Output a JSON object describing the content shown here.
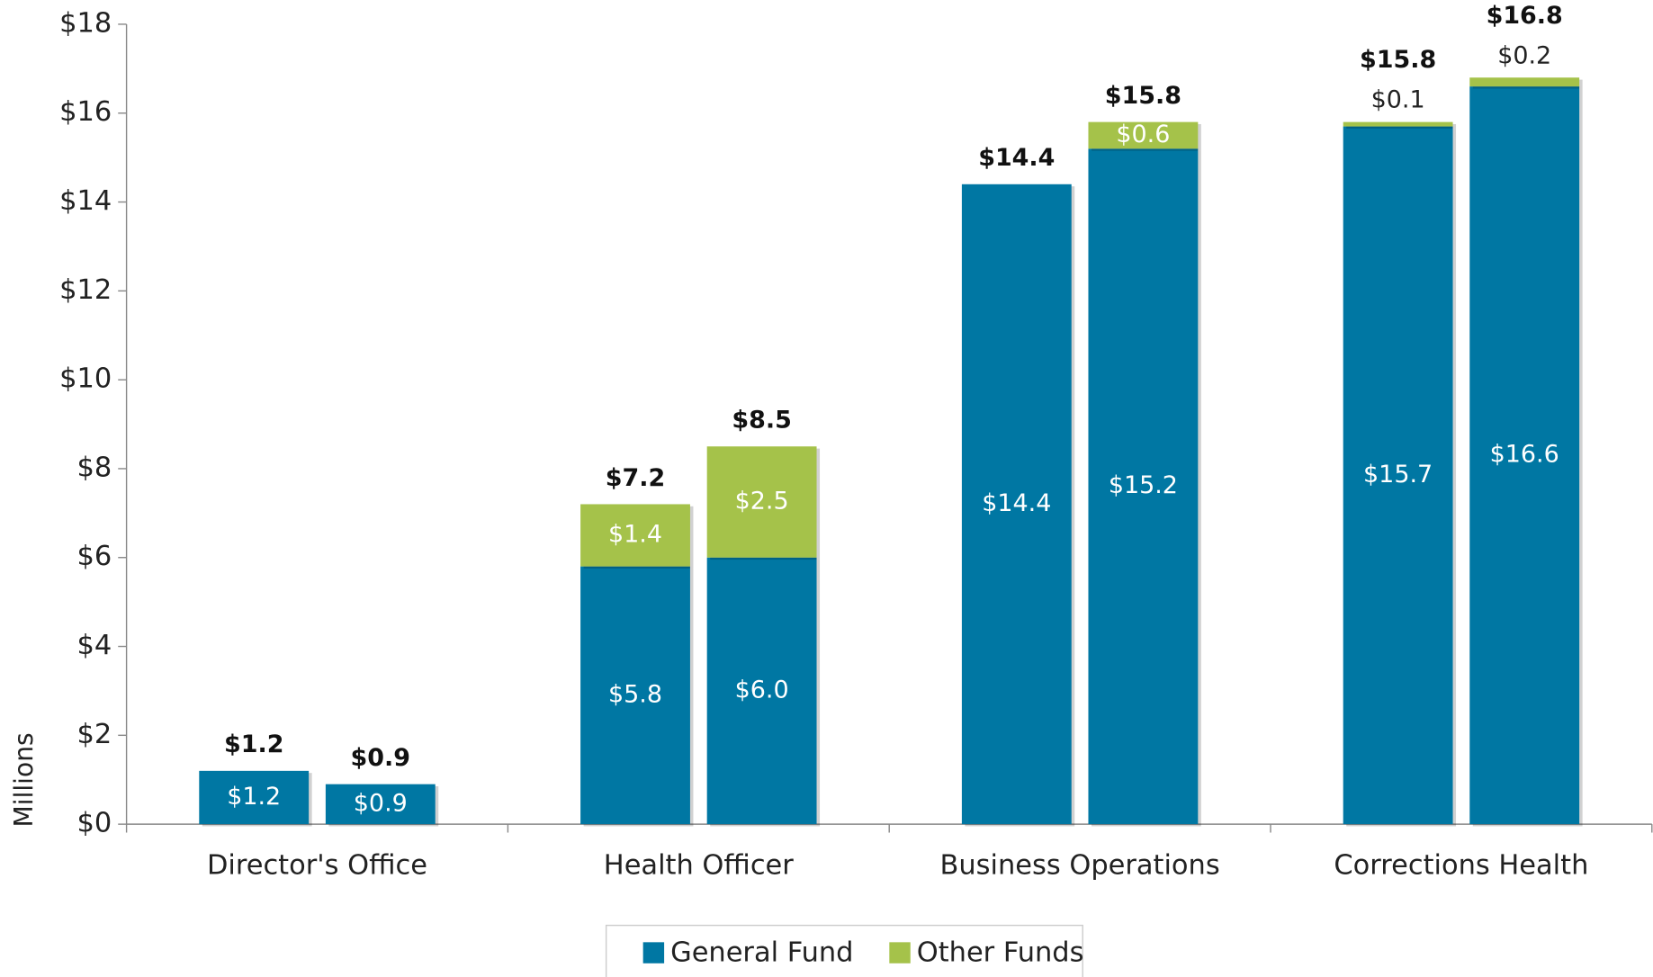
{
  "chart_data": {
    "type": "grouped_stacked_bar",
    "categories": [
      "Director's Office",
      "Health Officer",
      "Business Operations",
      "Corrections Health"
    ],
    "y_label": "Millions",
    "ylim": [
      0,
      18
    ],
    "yticks": [
      {
        "value": 0,
        "label": "$0"
      },
      {
        "value": 2,
        "label": "$2"
      },
      {
        "value": 4,
        "label": "$4"
      },
      {
        "value": 6,
        "label": "$6"
      },
      {
        "value": 8,
        "label": "$8"
      },
      {
        "value": 10,
        "label": "$10"
      },
      {
        "value": 12,
        "label": "$12"
      },
      {
        "value": 14,
        "label": "$14"
      },
      {
        "value": 16,
        "label": "$16"
      },
      {
        "value": 18,
        "label": "$18"
      }
    ],
    "series": [
      {
        "name": "General Fund",
        "color": "#0077a3",
        "values": [
          [
            1.2,
            0.9
          ],
          [
            5.8,
            6.0
          ],
          [
            14.4,
            15.2
          ],
          [
            15.7,
            16.6
          ]
        ],
        "value_labels": [
          [
            "$1.2",
            "$0.9"
          ],
          [
            "$5.8",
            "$6.0"
          ],
          [
            "$14.4",
            "$15.2"
          ],
          [
            "$15.7",
            "$16.6"
          ]
        ]
      },
      {
        "name": "Other Funds",
        "color": "#a5c24a",
        "values": [
          [
            null,
            null
          ],
          [
            1.4,
            2.5
          ],
          [
            null,
            0.6
          ],
          [
            0.1,
            0.2
          ]
        ],
        "value_labels": [
          [
            null,
            null
          ],
          [
            "$1.4",
            "$2.5"
          ],
          [
            null,
            "$0.6"
          ],
          [
            "$0.1",
            "$0.2"
          ]
        ]
      }
    ],
    "totals": [
      [
        1.2,
        0.9
      ],
      [
        7.2,
        8.5
      ],
      [
        14.4,
        15.8
      ],
      [
        15.8,
        16.8
      ]
    ],
    "total_labels": [
      [
        "$1.2",
        "$0.9"
      ],
      [
        "$7.2",
        "$8.5"
      ],
      [
        "$14.4",
        "$15.8"
      ],
      [
        "$15.8",
        "$16.8"
      ]
    ],
    "legend": "bottom"
  }
}
